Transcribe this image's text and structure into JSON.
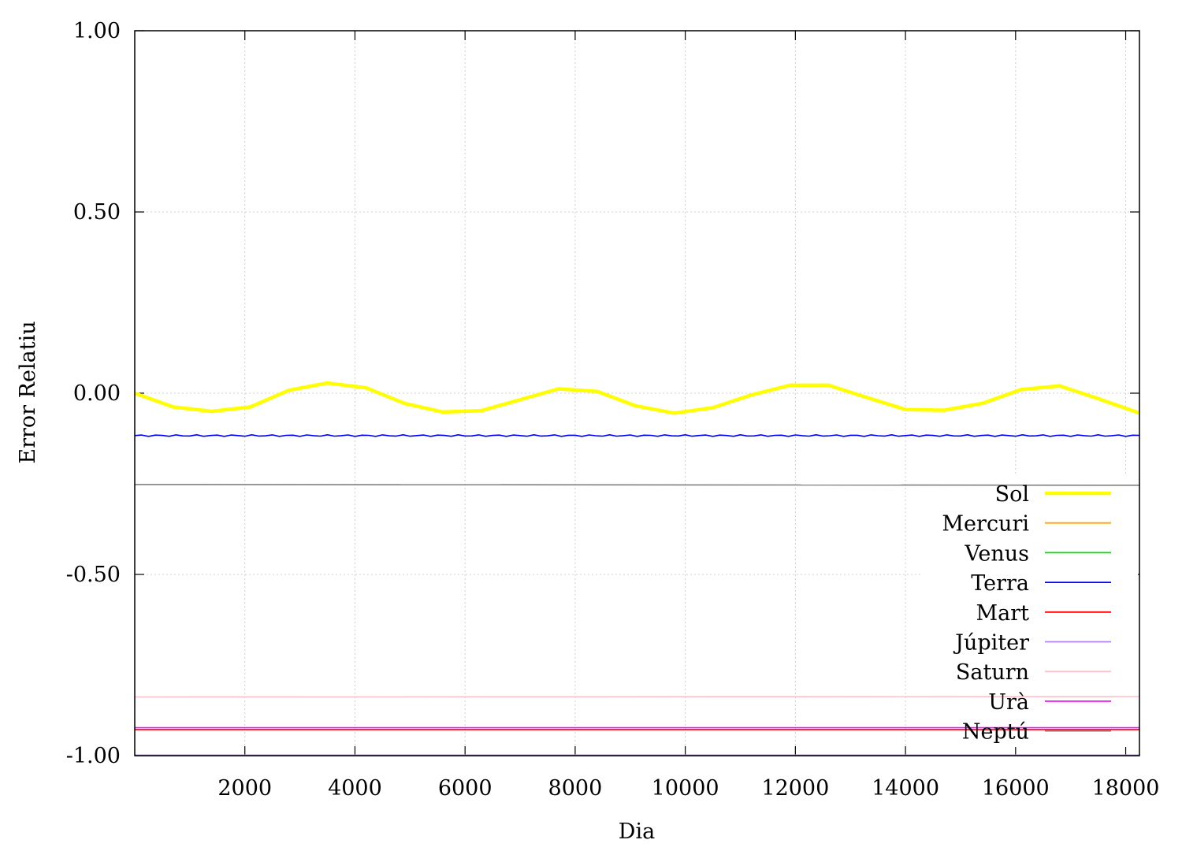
{
  "chart_data": {
    "type": "line",
    "xlabel": "Dia",
    "ylabel": "Error Relatiu",
    "xlim": [
      0,
      18250
    ],
    "ylim": [
      -1.0,
      1.0
    ],
    "xticks": [
      2000,
      4000,
      6000,
      8000,
      10000,
      12000,
      14000,
      16000,
      18000
    ],
    "xtick_labels": [
      "2000",
      "4000",
      "6000",
      "8000",
      "10000",
      "12000",
      "14000",
      "16000",
      "18000"
    ],
    "yticks": [
      1.0,
      0.5,
      0.0,
      -0.5,
      -1.0
    ],
    "ytick_labels": [
      "1.00",
      "0.50",
      "0.00",
      "-0.50",
      "-1.00"
    ],
    "grid": true,
    "legend_position": "bottom-right",
    "series": [
      {
        "name": "Sol",
        "color": "#ffff00",
        "x": [
          0,
          700,
          1400,
          2100,
          2800,
          3500,
          4200,
          4900,
          5600,
          6300,
          7000,
          7700,
          8400,
          9100,
          9800,
          10500,
          11200,
          11900,
          12600,
          13300,
          14000,
          14700,
          15400,
          16100,
          16800,
          17500,
          18250
        ],
        "y": [
          0.0,
          -0.038,
          -0.05,
          -0.038,
          0.008,
          0.028,
          0.015,
          -0.028,
          -0.052,
          -0.048,
          -0.018,
          0.012,
          0.005,
          -0.035,
          -0.055,
          -0.04,
          -0.005,
          0.022,
          0.022,
          -0.012,
          -0.045,
          -0.047,
          -0.028,
          0.01,
          0.02,
          -0.015,
          -0.055
        ]
      },
      {
        "name": "Mercuri",
        "color": "#ffa500",
        "x": [
          0,
          18250
        ],
        "y": [
          -1.0,
          -1.0
        ]
      },
      {
        "name": "Venus",
        "color": "#00dd00",
        "x": [
          0,
          18250
        ],
        "y": [
          -0.9999,
          -0.9999
        ]
      },
      {
        "name": "Terra",
        "color": "#0000ff",
        "x": [
          0,
          18250
        ],
        "y": [
          -0.117,
          -0.117
        ]
      },
      {
        "name": "Mart",
        "color": "#ff0000",
        "x": [
          0,
          18250
        ],
        "y": [
          -0.928,
          -0.928
        ]
      },
      {
        "name": "Júpiter",
        "color": "#b080ff",
        "x": [
          0,
          18250
        ],
        "y": [
          -0.9985,
          -0.9985
        ]
      },
      {
        "name": "Saturn",
        "color": "#ffc0cb",
        "x": [
          0,
          18250
        ],
        "y": [
          -0.838,
          -0.837
        ]
      },
      {
        "name": "Urà",
        "color": "#ff00ff",
        "x": [
          0,
          18250
        ],
        "y": [
          -0.923,
          -0.923
        ]
      },
      {
        "name": "Neptú",
        "color": "#808080",
        "x": [
          0,
          18250
        ],
        "y": [
          -0.252,
          -0.254
        ]
      }
    ]
  }
}
